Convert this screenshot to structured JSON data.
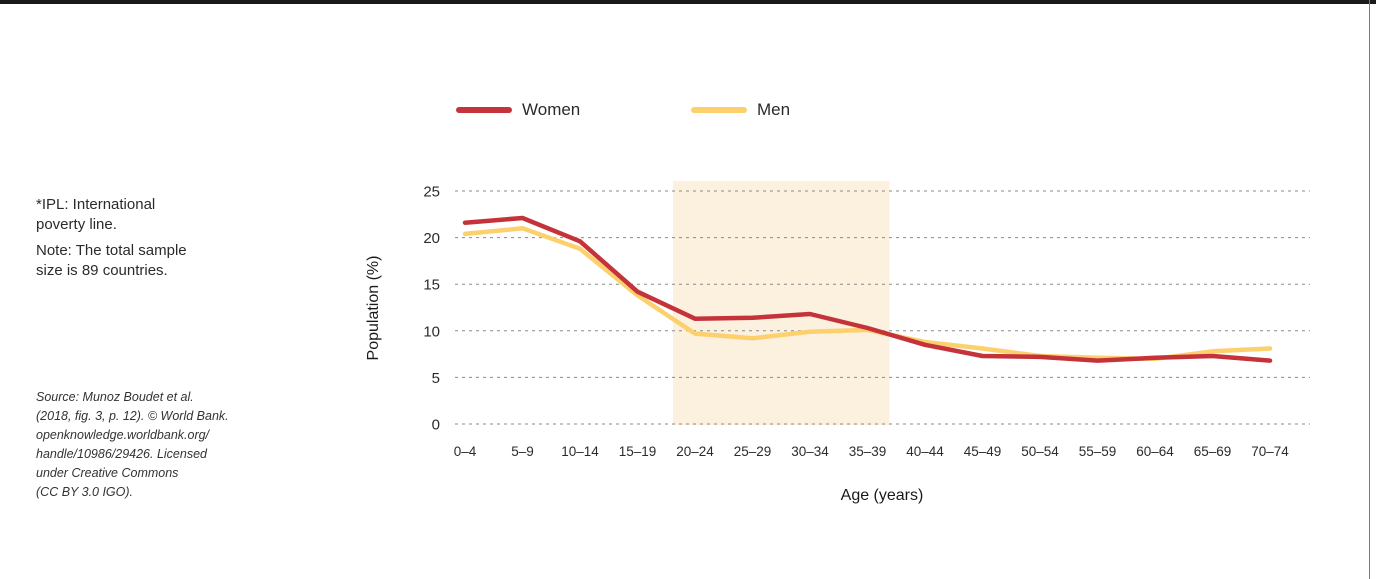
{
  "notes": {
    "ipl": [
      "*IPL: International",
      "poverty line."
    ],
    "sample": [
      "Note: The total sample",
      "size is 89 countries."
    ],
    "source": [
      "Source: Munoz Boudet et al.",
      "(2018, fig. 3, p. 12). © World Bank.",
      "openknowledge.worldbank.org/",
      "handle/10986/29426. Licensed",
      "under Creative Commons",
      "(CC BY 3.0 IGO)."
    ]
  },
  "chart_data": {
    "type": "line",
    "xlabel": "Age (years)",
    "ylabel": "Population (%)",
    "ylim": [
      0,
      25
    ],
    "yticks": [
      "0",
      "5",
      "10",
      "15",
      "20",
      "25"
    ],
    "grid": "horizontal dashed",
    "legend_position": "top",
    "categories": [
      "0–4",
      "5–9",
      "10–14",
      "15–19",
      "20–24",
      "25–29",
      "30–34",
      "35–39",
      "40–44",
      "45–49",
      "50–54",
      "55–59",
      "60–64",
      "65–69",
      "70–74"
    ],
    "highlight_range": [
      "20–24",
      "35–39"
    ],
    "highlight_color": "#fcf0de",
    "series": [
      {
        "name": "Women",
        "color": "#c4333a",
        "values": [
          21.6,
          22.1,
          19.6,
          14.2,
          11.3,
          11.4,
          11.8,
          10.3,
          8.5,
          7.3,
          7.2,
          6.8,
          7.1,
          7.3,
          6.8
        ]
      },
      {
        "name": "Men",
        "color": "#fdd06e",
        "values": [
          20.4,
          21.0,
          18.8,
          13.8,
          9.7,
          9.2,
          9.9,
          10.1,
          8.8,
          8.1,
          7.3,
          7.1,
          7.0,
          7.8,
          8.1
        ]
      }
    ]
  }
}
